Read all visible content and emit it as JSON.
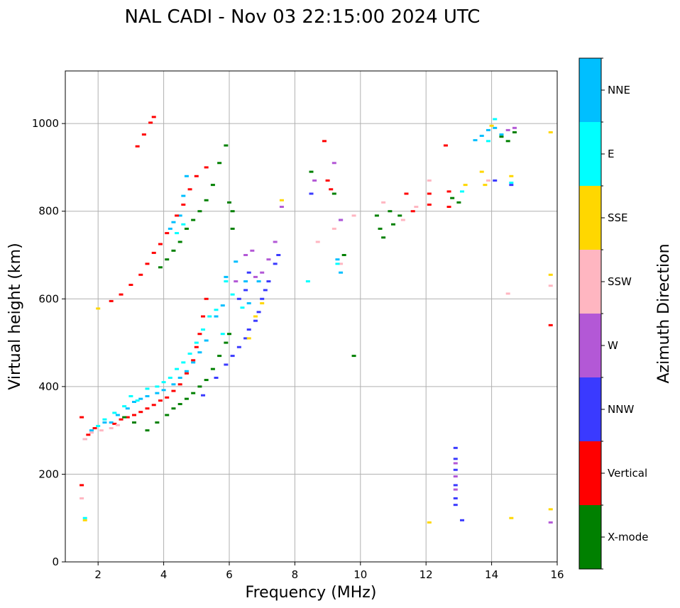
{
  "chart_data": {
    "type": "scatter",
    "title": "NAL CADI - Nov 03 22:15:00 2024 UTC",
    "xlabel": "Frequency (MHz)",
    "ylabel": "Virtual height (km)",
    "xlim": [
      1,
      16
    ],
    "ylim": [
      0,
      1120
    ],
    "x_ticks": [
      2,
      4,
      6,
      8,
      10,
      12,
      14,
      16
    ],
    "y_ticks": [
      0,
      200,
      400,
      600,
      800,
      1000
    ],
    "grid": true,
    "colorbar": {
      "title": "Azimuth Direction",
      "categories": [
        {
          "label": "X-mode",
          "color": "#008000"
        },
        {
          "label": "Vertical",
          "color": "#ff0000"
        },
        {
          "label": "NNW",
          "color": "#3a3aff"
        },
        {
          "label": "W",
          "color": "#b358d6"
        },
        {
          "label": "SSW",
          "color": "#ffb6c1"
        },
        {
          "label": "SSE",
          "color": "#ffd700"
        },
        {
          "label": "E",
          "color": "#00ffff"
        },
        {
          "label": "NNE",
          "color": "#00bfff"
        }
      ]
    },
    "series": [
      {
        "name": "NNE",
        "points": [
          [
            1.6,
            280
          ],
          [
            1.8,
            300
          ],
          [
            2.2,
            318
          ],
          [
            2.4,
            318
          ],
          [
            2.6,
            335
          ],
          [
            2.9,
            350
          ],
          [
            3.1,
            365
          ],
          [
            3.3,
            372
          ],
          [
            3.5,
            378
          ],
          [
            3.8,
            385
          ],
          [
            4.0,
            392
          ],
          [
            4.3,
            405
          ],
          [
            4.5,
            420
          ],
          [
            4.7,
            435
          ],
          [
            4.9,
            455
          ],
          [
            5.1,
            478
          ],
          [
            5.3,
            505
          ],
          [
            5.6,
            560
          ],
          [
            5.8,
            585
          ],
          [
            5.9,
            650
          ],
          [
            6.2,
            685
          ],
          [
            6.5,
            640
          ],
          [
            6.6,
            590
          ],
          [
            6.9,
            640
          ],
          [
            4.2,
            760
          ],
          [
            4.3,
            775
          ],
          [
            4.5,
            790
          ],
          [
            4.6,
            835
          ],
          [
            4.7,
            880
          ],
          [
            9.3,
            690
          ],
          [
            9.4,
            660
          ],
          [
            13.5,
            962
          ],
          [
            13.7,
            972
          ],
          [
            13.9,
            985
          ],
          [
            14.1,
            990
          ],
          [
            14.3,
            975
          ]
        ]
      },
      {
        "name": "Vertical",
        "points": [
          [
            1.5,
            330
          ],
          [
            1.5,
            175
          ],
          [
            1.7,
            290
          ],
          [
            1.9,
            305
          ],
          [
            2.5,
            315
          ],
          [
            2.7,
            325
          ],
          [
            2.9,
            330
          ],
          [
            3.1,
            335
          ],
          [
            3.3,
            342
          ],
          [
            3.5,
            350
          ],
          [
            3.7,
            358
          ],
          [
            3.9,
            368
          ],
          [
            4.1,
            375
          ],
          [
            4.3,
            390
          ],
          [
            4.5,
            405
          ],
          [
            4.7,
            430
          ],
          [
            4.9,
            460
          ],
          [
            5.0,
            490
          ],
          [
            5.1,
            520
          ],
          [
            5.2,
            560
          ],
          [
            5.3,
            600
          ],
          [
            2.4,
            595
          ],
          [
            2.7,
            610
          ],
          [
            3.0,
            632
          ],
          [
            3.3,
            655
          ],
          [
            3.5,
            680
          ],
          [
            3.7,
            705
          ],
          [
            3.9,
            725
          ],
          [
            4.1,
            750
          ],
          [
            4.4,
            790
          ],
          [
            4.6,
            815
          ],
          [
            4.8,
            850
          ],
          [
            5.0,
            880
          ],
          [
            5.3,
            900
          ],
          [
            3.2,
            948
          ],
          [
            3.4,
            975
          ],
          [
            3.6,
            1002
          ],
          [
            3.7,
            1015
          ],
          [
            8.9,
            960
          ],
          [
            9.0,
            870
          ],
          [
            9.1,
            850
          ],
          [
            11.4,
            840
          ],
          [
            11.6,
            800
          ],
          [
            12.1,
            840
          ],
          [
            12.1,
            815
          ],
          [
            12.7,
            845
          ],
          [
            12.7,
            810
          ],
          [
            12.6,
            950
          ],
          [
            15.8,
            540
          ]
        ]
      },
      {
        "name": "X-mode",
        "points": [
          [
            2.8,
            330
          ],
          [
            3.1,
            318
          ],
          [
            3.5,
            300
          ],
          [
            3.8,
            318
          ],
          [
            4.1,
            335
          ],
          [
            4.3,
            350
          ],
          [
            4.5,
            360
          ],
          [
            4.7,
            372
          ],
          [
            4.9,
            385
          ],
          [
            5.1,
            400
          ],
          [
            5.3,
            415
          ],
          [
            5.5,
            440
          ],
          [
            5.7,
            470
          ],
          [
            5.9,
            500
          ],
          [
            6.0,
            520
          ],
          [
            3.9,
            672
          ],
          [
            4.1,
            690
          ],
          [
            4.3,
            710
          ],
          [
            4.5,
            730
          ],
          [
            4.7,
            760
          ],
          [
            4.9,
            780
          ],
          [
            5.1,
            800
          ],
          [
            5.3,
            825
          ],
          [
            5.5,
            860
          ],
          [
            5.7,
            910
          ],
          [
            5.9,
            950
          ],
          [
            6.0,
            820
          ],
          [
            6.1,
            800
          ],
          [
            6.1,
            760
          ],
          [
            8.5,
            890
          ],
          [
            9.2,
            840
          ],
          [
            9.5,
            700
          ],
          [
            9.8,
            470
          ],
          [
            10.5,
            790
          ],
          [
            10.6,
            760
          ],
          [
            10.7,
            740
          ],
          [
            10.9,
            800
          ],
          [
            11.0,
            770
          ],
          [
            11.2,
            790
          ],
          [
            12.8,
            830
          ],
          [
            13.0,
            820
          ],
          [
            14.3,
            970
          ],
          [
            14.5,
            960
          ],
          [
            14.7,
            980
          ]
        ]
      },
      {
        "name": "NNW",
        "points": [
          [
            5.2,
            380
          ],
          [
            5.6,
            420
          ],
          [
            5.9,
            450
          ],
          [
            6.1,
            470
          ],
          [
            6.3,
            490
          ],
          [
            6.5,
            510
          ],
          [
            6.6,
            530
          ],
          [
            6.8,
            550
          ],
          [
            6.9,
            570
          ],
          [
            7.0,
            600
          ],
          [
            7.1,
            620
          ],
          [
            7.2,
            640
          ],
          [
            7.4,
            680
          ],
          [
            7.5,
            700
          ],
          [
            6.3,
            600
          ],
          [
            6.5,
            620
          ],
          [
            6.6,
            660
          ],
          [
            8.5,
            840
          ],
          [
            9.4,
            780
          ],
          [
            12.9,
            260
          ],
          [
            12.9,
            235
          ],
          [
            12.9,
            210
          ],
          [
            12.9,
            175
          ],
          [
            12.9,
            145
          ],
          [
            12.9,
            130
          ],
          [
            13.1,
            95
          ],
          [
            14.1,
            870
          ],
          [
            14.6,
            860
          ]
        ]
      },
      {
        "name": "W",
        "points": [
          [
            6.2,
            640
          ],
          [
            6.5,
            700
          ],
          [
            6.7,
            710
          ],
          [
            6.8,
            650
          ],
          [
            7.0,
            660
          ],
          [
            7.2,
            690
          ],
          [
            7.4,
            730
          ],
          [
            7.6,
            810
          ],
          [
            8.6,
            870
          ],
          [
            9.2,
            910
          ],
          [
            9.4,
            780
          ],
          [
            12.9,
            225
          ],
          [
            12.9,
            195
          ],
          [
            12.9,
            165
          ],
          [
            14.5,
            985
          ],
          [
            14.7,
            990
          ],
          [
            15.8,
            90
          ]
        ]
      },
      {
        "name": "SSW",
        "points": [
          [
            1.5,
            145
          ],
          [
            1.6,
            280
          ],
          [
            1.8,
            295
          ],
          [
            2.1,
            300
          ],
          [
            2.4,
            305
          ],
          [
            2.6,
            312
          ],
          [
            8.7,
            730
          ],
          [
            9.2,
            760
          ],
          [
            9.4,
            680
          ],
          [
            9.8,
            790
          ],
          [
            10.7,
            820
          ],
          [
            11.3,
            780
          ],
          [
            11.7,
            810
          ],
          [
            12.1,
            870
          ],
          [
            13.9,
            870
          ],
          [
            14.5,
            612
          ],
          [
            15.8,
            630
          ]
        ]
      },
      {
        "name": "SSE",
        "points": [
          [
            1.6,
            95
          ],
          [
            2.0,
            578
          ],
          [
            6.6,
            510
          ],
          [
            6.8,
            560
          ],
          [
            7.0,
            590
          ],
          [
            7.6,
            825
          ],
          [
            12.1,
            90
          ],
          [
            13.2,
            860
          ],
          [
            13.7,
            890
          ],
          [
            13.8,
            860
          ],
          [
            14.0,
            995
          ],
          [
            14.6,
            880
          ],
          [
            14.6,
            100
          ],
          [
            15.8,
            980
          ],
          [
            15.8,
            655
          ],
          [
            15.8,
            120
          ]
        ]
      },
      {
        "name": "E",
        "points": [
          [
            1.6,
            100
          ],
          [
            2.0,
            310
          ],
          [
            2.2,
            325
          ],
          [
            2.5,
            340
          ],
          [
            2.8,
            355
          ],
          [
            3.0,
            378
          ],
          [
            3.2,
            368
          ],
          [
            3.5,
            395
          ],
          [
            3.8,
            400
          ],
          [
            4.0,
            410
          ],
          [
            4.2,
            420
          ],
          [
            4.4,
            440
          ],
          [
            4.6,
            455
          ],
          [
            4.8,
            475
          ],
          [
            5.0,
            500
          ],
          [
            5.2,
            530
          ],
          [
            5.4,
            560
          ],
          [
            5.6,
            575
          ],
          [
            5.8,
            520
          ],
          [
            5.9,
            640
          ],
          [
            6.1,
            610
          ],
          [
            6.4,
            580
          ],
          [
            4.4,
            750
          ],
          [
            4.6,
            770
          ],
          [
            8.4,
            640
          ],
          [
            9.3,
            680
          ],
          [
            13.1,
            845
          ],
          [
            13.9,
            960
          ],
          [
            14.1,
            1010
          ],
          [
            14.6,
            865
          ]
        ]
      }
    ]
  }
}
